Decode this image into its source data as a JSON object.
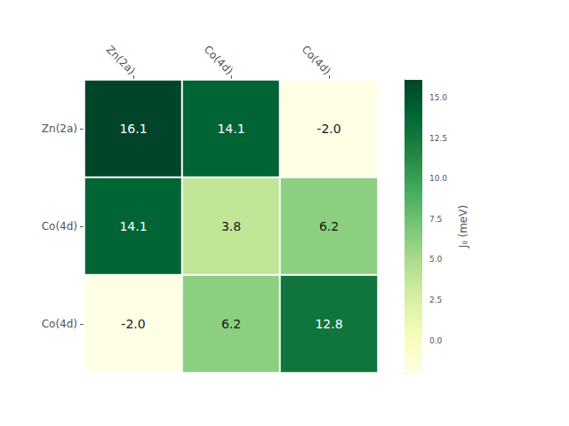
{
  "chart_data": {
    "type": "heatmap",
    "rows": [
      "Zn(2a)",
      "Co(4d)",
      "Co(4d)"
    ],
    "columns": [
      "Zn(2a)",
      "Co(4d)",
      "Co(4d)"
    ],
    "values": [
      [
        16.1,
        14.1,
        -2.0
      ],
      [
        14.1,
        3.8,
        6.2
      ],
      [
        -2.0,
        6.2,
        12.8
      ]
    ],
    "value_labels": [
      [
        "16.1",
        "14.1",
        "-2.0"
      ],
      [
        "14.1",
        "3.8",
        "6.2"
      ],
      [
        "-2.0",
        "6.2",
        "12.8"
      ]
    ],
    "data_labels": true,
    "colorbar": {
      "label": "Jᵢⱼ (meV)",
      "range": [
        -2.0,
        16.1
      ],
      "ticks": [
        {
          "value": 0.0,
          "label": "0.0"
        },
        {
          "value": 2.5,
          "label": "2.5"
        },
        {
          "value": 5.0,
          "label": "5.0"
        },
        {
          "value": 7.5,
          "label": "7.5"
        },
        {
          "value": 10.0,
          "label": "10.0"
        },
        {
          "value": 12.5,
          "label": "12.5"
        },
        {
          "value": 15.0,
          "label": "15.0"
        }
      ],
      "colors": [
        "#ffffe5",
        "#f7fcb9",
        "#d9f0a3",
        "#addd8e",
        "#78c679",
        "#41ab5d",
        "#238443",
        "#006837",
        "#004529"
      ]
    }
  }
}
